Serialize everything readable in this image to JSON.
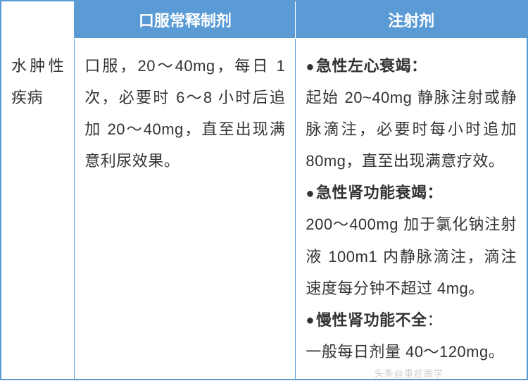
{
  "table": {
    "header": {
      "col1": "",
      "col2": "口服常释制剂",
      "col3": "注射剂"
    },
    "row": {
      "label": "水肿性疾病",
      "oral": "口服，20～40mg，每日 1 次，必要时 6～8 小时后追加 20～40mg，直至出现满意利尿效果。",
      "inject_s1_title": "急性左心衰竭：",
      "inject_s1_body": "起始 20~40mg 静脉注射或静脉滴注，必要时每小时追加 80mg，直至出现满意疗效。",
      "inject_s2_title": "急性肾功能衰竭：",
      "inject_s2_body": "200～400mg 加于氯化钠注射液 100m1 内静脉滴注，滴注速度每分钟不超过 4mg。",
      "inject_s3_title": "慢性肾功能不全",
      "inject_s3_body": "一般每日剂量 40～120mg。"
    }
  },
  "colors": {
    "header_bg": "#5b9bd5",
    "header_text": "#ffffff",
    "border": "#5b9bd5",
    "body_text": "#333333"
  },
  "watermark": "头条@重症医学"
}
